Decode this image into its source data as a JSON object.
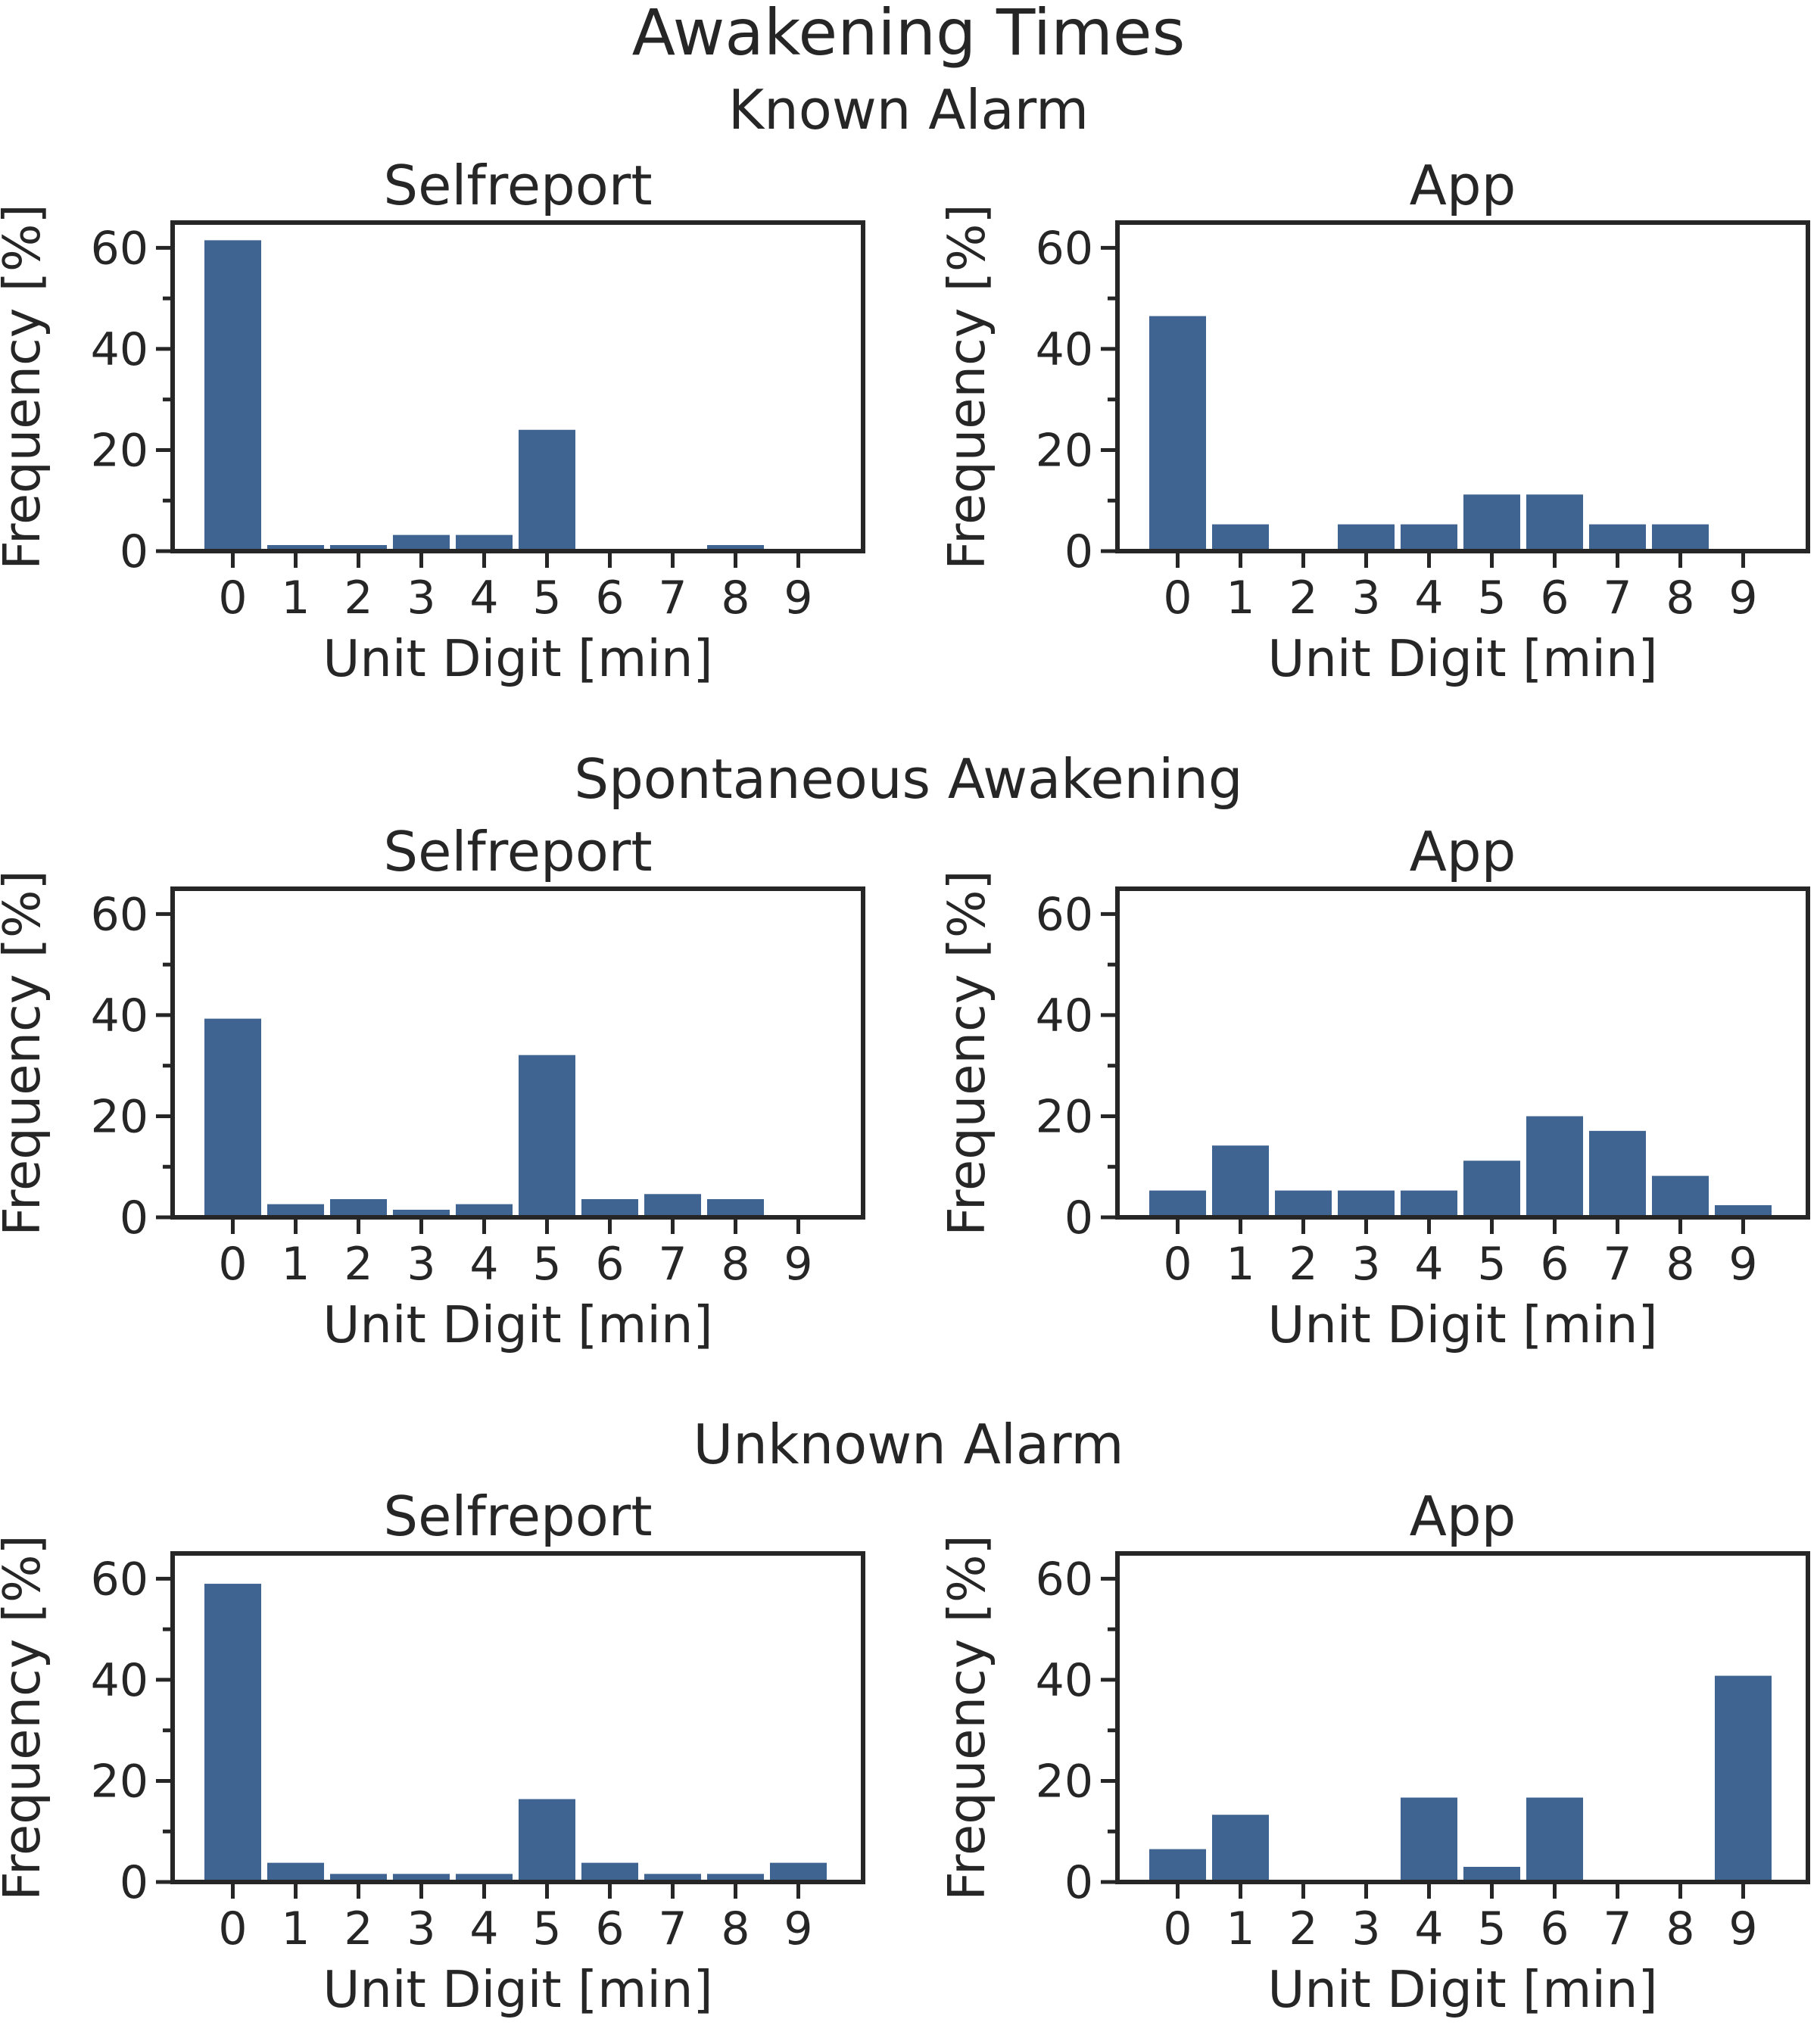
{
  "title": "Awakening Times",
  "colors": {
    "bar": "#406492",
    "axis": "#262626"
  },
  "chart_data": [
    {
      "type": "bar",
      "group": "Known Alarm",
      "title": "Selfreport",
      "xlabel": "Unit Digit [min]",
      "ylabel": "Frequency [%]",
      "categories": [
        "0",
        "1",
        "2",
        "3",
        "4",
        "5",
        "6",
        "7",
        "8",
        "9"
      ],
      "values": [
        61.5,
        1.2,
        1.2,
        3.2,
        3.2,
        24.0,
        0,
        0,
        1.2,
        0
      ],
      "ylim": [
        0,
        65
      ],
      "yticks": [
        0,
        20,
        40,
        60
      ],
      "grid": false
    },
    {
      "type": "bar",
      "group": "Known Alarm",
      "title": "App",
      "xlabel": "Unit Digit [min]",
      "ylabel": "Frequency [%]",
      "categories": [
        "0",
        "1",
        "2",
        "3",
        "4",
        "5",
        "6",
        "7",
        "8",
        "9"
      ],
      "values": [
        46.5,
        5.3,
        0,
        5.3,
        5.3,
        11.2,
        11.2,
        5.3,
        5.3,
        0
      ],
      "ylim": [
        0,
        65
      ],
      "yticks": [
        0,
        20,
        40,
        60
      ],
      "grid": false
    },
    {
      "type": "bar",
      "group": "Spontaneous Awakening",
      "title": "Selfreport",
      "xlabel": "Unit Digit [min]",
      "ylabel": "Frequency [%]",
      "categories": [
        "0",
        "1",
        "2",
        "3",
        "4",
        "5",
        "6",
        "7",
        "8",
        "9"
      ],
      "values": [
        39.3,
        2.6,
        3.6,
        1.5,
        2.6,
        32.1,
        3.6,
        4.6,
        3.6,
        0
      ],
      "ylim": [
        0,
        65
      ],
      "yticks": [
        0,
        20,
        40,
        60
      ],
      "grid": false
    },
    {
      "type": "bar",
      "group": "Spontaneous Awakening",
      "title": "App",
      "xlabel": "Unit Digit [min]",
      "ylabel": "Frequency [%]",
      "categories": [
        "0",
        "1",
        "2",
        "3",
        "4",
        "5",
        "6",
        "7",
        "8",
        "9"
      ],
      "values": [
        5.3,
        14.2,
        5.3,
        5.3,
        5.3,
        11.2,
        20.0,
        17.1,
        8.2,
        2.4
      ],
      "ylim": [
        0,
        65
      ],
      "yticks": [
        0,
        20,
        40,
        60
      ],
      "grid": false
    },
    {
      "type": "bar",
      "group": "Unknown Alarm",
      "title": "Selfreport",
      "xlabel": "Unit Digit [min]",
      "ylabel": "Frequency [%]",
      "categories": [
        "0",
        "1",
        "2",
        "3",
        "4",
        "5",
        "6",
        "7",
        "8",
        "9"
      ],
      "values": [
        59.0,
        3.8,
        1.6,
        1.6,
        1.6,
        16.4,
        3.8,
        1.6,
        1.6,
        3.8
      ],
      "ylim": [
        0,
        65
      ],
      "yticks": [
        0,
        20,
        40,
        60
      ],
      "grid": false
    },
    {
      "type": "bar",
      "group": "Unknown Alarm",
      "title": "App",
      "xlabel": "Unit Digit [min]",
      "ylabel": "Frequency [%]",
      "categories": [
        "0",
        "1",
        "2",
        "3",
        "4",
        "5",
        "6",
        "7",
        "8",
        "9"
      ],
      "values": [
        6.5,
        13.3,
        0,
        0,
        16.7,
        3.0,
        16.7,
        0,
        0,
        40.8
      ],
      "ylim": [
        0,
        65
      ],
      "yticks": [
        0,
        20,
        40,
        60
      ],
      "grid": false
    }
  ]
}
